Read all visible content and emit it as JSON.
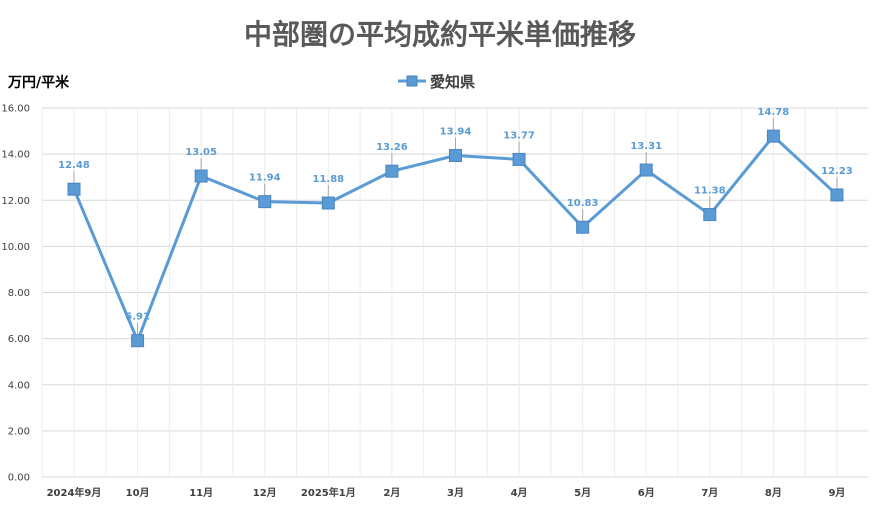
{
  "chart_data": {
    "type": "line",
    "title": "中部圏の平均成約平米単価推移",
    "ylabel": "万円/平米",
    "xlabel": "",
    "categories": [
      "2024年9月",
      "10月",
      "11月",
      "12月",
      "2025年1月",
      "2月",
      "3月",
      "4月",
      "5月",
      "6月",
      "7月",
      "8月",
      "9月"
    ],
    "series": [
      {
        "name": "愛知県",
        "values": [
          12.48,
          5.91,
          13.05,
          11.94,
          11.88,
          13.26,
          13.94,
          13.77,
          10.83,
          13.31,
          11.38,
          14.78,
          12.23
        ],
        "labels": [
          "12.48",
          "5.91",
          "13.05",
          "11.94",
          "11.88",
          "13.26",
          "13.94",
          "13.77",
          "10.83",
          "13.31",
          "11.38",
          "14.78",
          "12.23"
        ],
        "color": "#5b9bd5"
      }
    ],
    "ylim": [
      0,
      16
    ],
    "yticks": [
      "0.00",
      "2.00",
      "4.00",
      "6.00",
      "8.00",
      "10.00",
      "12.00",
      "14.00",
      "16.00"
    ],
    "grid": true,
    "legend": "top-center"
  },
  "colors": {
    "series": "#5b9bd5",
    "grid": "#d9d9d9",
    "leader": "#a6a6a6"
  }
}
